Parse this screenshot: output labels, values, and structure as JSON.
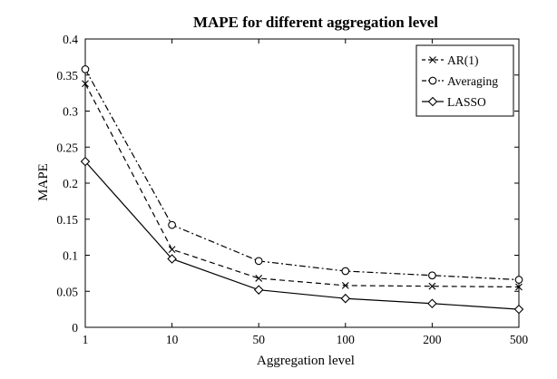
{
  "chart_data": {
    "type": "line",
    "title": "MAPE for different aggregation level",
    "xlabel": "Aggregation level",
    "ylabel": "MAPE",
    "categories": [
      "1",
      "10",
      "50",
      "100",
      "200",
      "500"
    ],
    "ylim": [
      0,
      0.4
    ],
    "yticks": [
      "0",
      "0.05",
      "0.1",
      "0.15",
      "0.2",
      "0.25",
      "0.3",
      "0.35",
      "0.4"
    ],
    "grid": false,
    "legend_position": "top-right",
    "series": [
      {
        "name": "AR(1)",
        "values": [
          0.338,
          0.108,
          0.068,
          0.058,
          0.057,
          0.056
        ],
        "line_style": "dashed",
        "marker": "x"
      },
      {
        "name": "Averaging",
        "values": [
          0.358,
          0.142,
          0.092,
          0.078,
          0.072,
          0.066
        ],
        "line_style": "dash-dot",
        "marker": "circle"
      },
      {
        "name": "LASSO",
        "values": [
          0.23,
          0.095,
          0.052,
          0.04,
          0.033,
          0.025
        ],
        "line_style": "solid",
        "marker": "diamond"
      }
    ]
  }
}
